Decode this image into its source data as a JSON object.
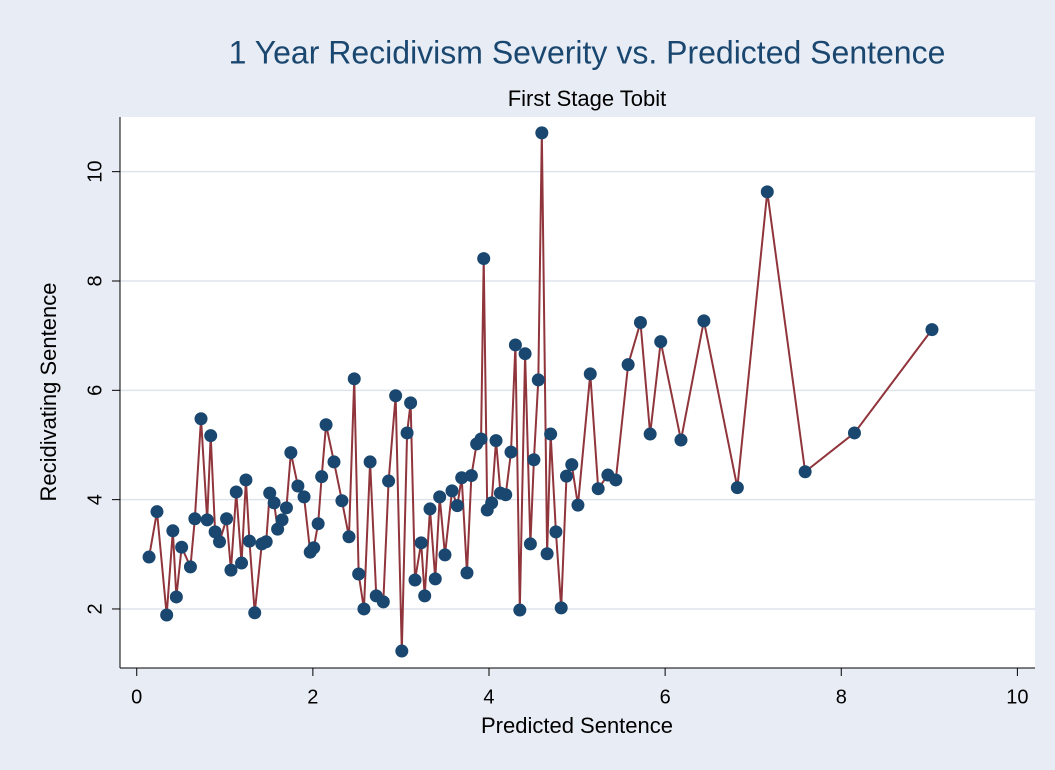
{
  "chart_data": {
    "type": "line",
    "title": "1 Year Recidivism Severity vs. Predicted Sentence",
    "subtitle": "First Stage Tobit",
    "x_label": "Predicted Sentence",
    "y_label": "Recidivating Sentence",
    "x": [
      0.14,
      0.23,
      0.34,
      0.41,
      0.45,
      0.51,
      0.61,
      0.66,
      0.73,
      0.8,
      0.84,
      0.89,
      0.94,
      1.02,
      1.07,
      1.13,
      1.19,
      1.24,
      1.28,
      1.34,
      1.42,
      1.47,
      1.51,
      1.56,
      1.6,
      1.65,
      1.7,
      1.75,
      1.83,
      1.9,
      1.97,
      2.01,
      2.06,
      2.1,
      2.15,
      2.24,
      2.33,
      2.41,
      2.47,
      2.52,
      2.58,
      2.65,
      2.72,
      2.8,
      2.86,
      2.94,
      3.01,
      3.07,
      3.11,
      3.16,
      3.23,
      3.27,
      3.33,
      3.39,
      3.44,
      3.5,
      3.58,
      3.64,
      3.69,
      3.75,
      3.8,
      3.86,
      3.91,
      3.94,
      3.98,
      4.03,
      4.08,
      4.13,
      4.19,
      4.25,
      4.3,
      4.35,
      4.41,
      4.47,
      4.51,
      4.56,
      4.6,
      4.66,
      4.7,
      4.76,
      4.82,
      4.88,
      4.94,
      5.01,
      5.15,
      5.24,
      5.35,
      5.44,
      5.58,
      5.72,
      5.83,
      5.95,
      6.18,
      6.44,
      6.82,
      7.16,
      7.59,
      8.15,
      9.03
    ],
    "series": [
      {
        "name": "Recidivating Sentence",
        "color": "#90353b",
        "marker_color": "#1a476f",
        "values": [
          2.95,
          3.78,
          1.89,
          3.43,
          2.22,
          3.13,
          2.77,
          3.65,
          5.48,
          3.63,
          5.17,
          3.41,
          3.23,
          3.65,
          2.71,
          4.14,
          2.84,
          4.36,
          3.24,
          1.93,
          3.19,
          3.23,
          4.12,
          3.94,
          3.46,
          3.63,
          3.85,
          4.86,
          4.25,
          4.05,
          3.04,
          3.12,
          3.56,
          4.42,
          5.37,
          4.69,
          3.98,
          3.32,
          6.21,
          2.64,
          2.0,
          4.69,
          2.24,
          2.13,
          4.34,
          5.9,
          1.23,
          5.22,
          5.77,
          2.53,
          3.21,
          2.24,
          3.83,
          2.55,
          4.05,
          2.99,
          4.16,
          3.89,
          4.4,
          2.66,
          4.44,
          5.02,
          5.11,
          8.41,
          3.81,
          3.94,
          5.08,
          4.12,
          4.09,
          4.87,
          6.83,
          1.98,
          6.67,
          3.19,
          4.73,
          6.19,
          10.71,
          3.01,
          5.2,
          3.41,
          2.02,
          4.43,
          4.64,
          3.9,
          6.3,
          4.2,
          4.45,
          4.36,
          6.47,
          7.24,
          5.2,
          6.89,
          5.09,
          7.27,
          4.22,
          9.63,
          4.51,
          5.22,
          7.11
        ]
      }
    ],
    "xlim": [
      -0.19,
      10.2
    ],
    "ylim": [
      0.92,
      11.0
    ],
    "xticks": [
      0,
      2,
      4,
      6,
      8,
      10
    ],
    "yticks": [
      2,
      4,
      6,
      8,
      10
    ],
    "grid": true
  }
}
